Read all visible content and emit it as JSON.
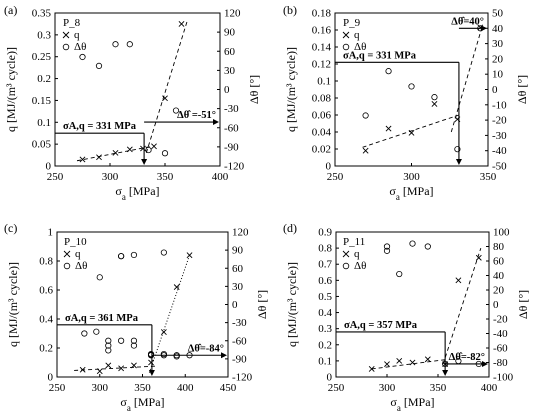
{
  "chart_data": [
    {
      "type": "scatter",
      "panel_label": "(a)",
      "specimen": "P_8",
      "xlabel": "σa [MPa]",
      "ylabel": "q [MJ/(m³ cycle)]",
      "y2label": "Δθ [°]",
      "xlim": [
        250,
        400
      ],
      "ylim": [
        0,
        0.35
      ],
      "y2lim": [
        -120,
        120
      ],
      "xticks": [
        250,
        300,
        350,
        400
      ],
      "yticks": [
        0,
        0.05,
        0.1,
        0.15,
        0.2,
        0.25,
        0.3,
        0.35
      ],
      "y2ticks": [
        -120,
        -90,
        -60,
        -30,
        0,
        30,
        60,
        90,
        120
      ],
      "series": [
        {
          "name": "q",
          "marker": "x",
          "axis": "left",
          "x": [
            275,
            290,
            305,
            318,
            330,
            340,
            350,
            365
          ],
          "y": [
            0.015,
            0.02,
            0.03,
            0.038,
            0.04,
            0.045,
            0.155,
            0.325
          ]
        },
        {
          "name": "Δθ",
          "marker": "o",
          "axis": "right",
          "x": [
            275,
            290,
            305,
            318,
            335,
            350,
            360
          ],
          "y": [
            51,
            37,
            71,
            71,
            -95,
            -100,
            -33
          ]
        }
      ],
      "fits": [
        {
          "style": "dash",
          "axis": "left",
          "x": [
            270,
            338
          ],
          "y": [
            0.012,
            0.045
          ]
        },
        {
          "style": "dash",
          "axis": "left",
          "x": [
            333,
            370
          ],
          "y": [
            0.03,
            0.33
          ]
        }
      ],
      "annotations": {
        "sigma_label": "σA,q = 331 MPa",
        "sigma_value": 331,
        "dtheta_label": "Δθ̂ =-51°",
        "dtheta_value": -51,
        "hline_q": 0.075
      }
    },
    {
      "type": "scatter",
      "panel_label": "(b)",
      "specimen": "P_9",
      "xlabel": "σa [MPa]",
      "ylabel": "q [MJ/(m³ cycle)]",
      "y2label": "Δθ [°]",
      "xlim": [
        250,
        350
      ],
      "ylim": [
        0,
        0.18
      ],
      "y2lim": [
        -50,
        50
      ],
      "xticks": [
        250,
        300,
        350
      ],
      "yticks": [
        0,
        0.02,
        0.04,
        0.06,
        0.08,
        0.1,
        0.12,
        0.14,
        0.16,
        0.18
      ],
      "y2ticks": [
        -50,
        -40,
        -30,
        -20,
        -10,
        0,
        10,
        20,
        30,
        40,
        50
      ],
      "series": [
        {
          "name": "q",
          "marker": "x",
          "axis": "left",
          "x": [
            270,
            285,
            300,
            315,
            330,
            345
          ],
          "y": [
            0.018,
            0.044,
            0.039,
            0.073,
            0.055,
            0.163
          ]
        },
        {
          "name": "Δθ",
          "marker": "o",
          "axis": "right",
          "x": [
            270,
            285,
            300,
            315,
            330,
            345
          ],
          "y": [
            -17,
            12,
            2,
            -5,
            -39,
            40
          ]
        }
      ],
      "fits": [
        {
          "style": "dash",
          "axis": "left",
          "x": [
            268,
            331
          ],
          "y": [
            0.022,
            0.06
          ]
        },
        {
          "style": "dash",
          "axis": "left",
          "x": [
            326,
            346
          ],
          "y": [
            0.04,
            0.163
          ]
        }
      ],
      "annotations": {
        "sigma_label": "σA,q = 331 MPa",
        "sigma_value": 331,
        "dtheta_label": "Δθ̂=40°",
        "dtheta_value": 40,
        "hline_q": 0.122
      }
    },
    {
      "type": "scatter",
      "panel_label": "(c)",
      "specimen": "P_10",
      "xlabel": "σa [MPa]",
      "ylabel": "q [MJ/(m³ cycle)]",
      "y2label": "Δθ [°]",
      "xlim": [
        250,
        450
      ],
      "ylim": [
        0,
        1
      ],
      "y2lim": [
        -120,
        120
      ],
      "xticks": [
        250,
        300,
        350,
        400,
        450
      ],
      "yticks": [
        0,
        0.2,
        0.4,
        0.6,
        0.8,
        1
      ],
      "y2ticks": [
        -120,
        -90,
        -60,
        -30,
        0,
        30,
        60,
        90,
        120
      ],
      "series": [
        {
          "name": "q",
          "marker": "x",
          "axis": "left",
          "x": [
            280,
            300,
            310,
            325,
            340,
            360,
            375,
            390,
            405
          ],
          "y": [
            0.05,
            0.04,
            0.08,
            0.06,
            0.08,
            0.1,
            0.31,
            0.62,
            0.84
          ]
        },
        {
          "name": "Δθ",
          "marker": "o",
          "axis": "right",
          "x": [
            282,
            296,
            300,
            310,
            310,
            310,
            325,
            325,
            325,
            340,
            340,
            340,
            360,
            360,
            360,
            375,
            375,
            375,
            390,
            390,
            405
          ],
          "y": [
            -48,
            -45,
            45,
            -60,
            -68,
            -76,
            80,
            80,
            -60,
            82,
            -60,
            -68,
            -82,
            -83,
            -84,
            86,
            -84,
            -82,
            -84,
            -86,
            -84
          ]
        }
      ],
      "fits": [
        {
          "style": "dash",
          "axis": "left",
          "x": [
            270,
            365
          ],
          "y": [
            0.045,
            0.075
          ]
        },
        {
          "style": "dot",
          "axis": "left",
          "x": [
            358,
            405
          ],
          "y": [
            0.03,
            0.84
          ]
        }
      ],
      "annotations": {
        "sigma_label": "σA,q = 361 MPa",
        "sigma_value": 361,
        "dtheta_label": "Δθ̂=-84°",
        "dtheta_value": -84,
        "hline_q": 0.36
      }
    },
    {
      "type": "scatter",
      "panel_label": "(d)",
      "specimen": "P_11",
      "xlabel": "σa [MPa]",
      "ylabel": "q [MJ/(m³ cycle)]",
      "y2label": "Δθ [°]",
      "xlim": [
        250,
        400
      ],
      "ylim": [
        0,
        0.9
      ],
      "y2lim": [
        -100,
        100
      ],
      "xticks": [
        250,
        300,
        350,
        400
      ],
      "yticks": [
        0,
        0.1,
        0.2,
        0.3,
        0.4,
        0.5,
        0.6,
        0.7,
        0.8,
        0.9
      ],
      "y2ticks": [
        -100,
        -80,
        -60,
        -40,
        -20,
        0,
        20,
        40,
        60,
        80,
        100
      ],
      "series": [
        {
          "name": "q",
          "marker": "x",
          "axis": "left",
          "x": [
            285,
            300,
            312,
            325,
            340,
            357,
            370,
            390
          ],
          "y": [
            0.05,
            0.08,
            0.1,
            0.09,
            0.11,
            0.08,
            0.6,
            0.74
          ]
        },
        {
          "name": "Δθ",
          "marker": "o",
          "axis": "right",
          "x": [
            300,
            300,
            312,
            325,
            340,
            357,
            370,
            390
          ],
          "y": [
            80,
            74,
            42,
            84,
            80,
            -82,
            -78,
            -82
          ]
        }
      ],
      "fits": [
        {
          "style": "dash",
          "axis": "left",
          "x": [
            285,
            360
          ],
          "y": [
            0.05,
            0.11
          ]
        },
        {
          "style": "dash",
          "axis": "left",
          "x": [
            355,
            392
          ],
          "y": [
            0.08,
            0.8
          ]
        }
      ],
      "annotations": {
        "sigma_label": "σA,q = 357 MPa",
        "sigma_value": 357,
        "dtheta_label": "Δθ̂=-82°",
        "dtheta_value": -82,
        "hline_q": 0.28
      }
    }
  ]
}
